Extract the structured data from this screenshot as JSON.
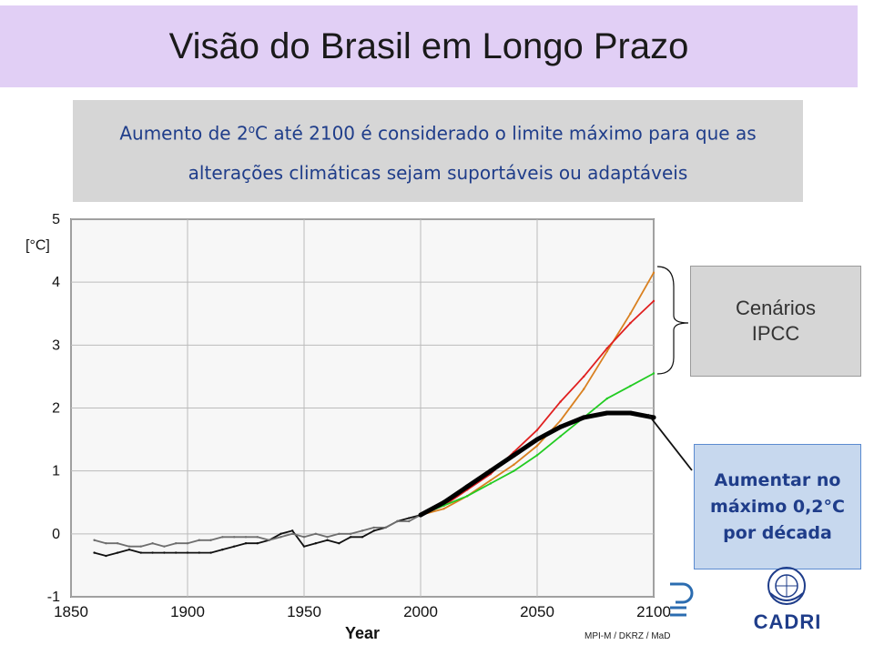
{
  "header": {
    "title": "Visão do Brasil em Longo Prazo"
  },
  "note": {
    "line1_pre": "Aumento de 2",
    "line1_sup": "o",
    "line1_post": "C até 2100 é considerado o limite máximo para que as",
    "line2": "alterações climáticas sejam suportáveis ou adaptáveis"
  },
  "scenarios_box": {
    "line1": "Cenários",
    "line2": "IPCC"
  },
  "limit_box": {
    "line1": "Aumentar no",
    "line2": "máximo 0,2°C",
    "line3": "por década"
  },
  "credit": "MPI-M / DKRZ / MaD",
  "logos": {
    "cadri": "CADRI",
    "cadri_icon": "un-emblem-icon",
    "partner_icon": "partner-logo-icon"
  },
  "chart_data": {
    "type": "line",
    "xlabel": "Year",
    "ylabel": "[°C]",
    "xlim": [
      1850,
      2100
    ],
    "ylim": [
      -1,
      5
    ],
    "x_ticks": [
      1850,
      1900,
      1950,
      2000,
      2050,
      2100
    ],
    "y_ticks": [
      -1,
      0,
      1,
      2,
      3,
      4,
      5
    ],
    "colors": {
      "obs_black": "#111111",
      "obs_gray": "#6e6e6e",
      "high": "#d98020",
      "mid": "#e02020",
      "low": "#22cc22",
      "target": "#000000"
    },
    "series": [
      {
        "key": "obs_black",
        "x": [
          1860,
          1865,
          1870,
          1875,
          1880,
          1885,
          1890,
          1895,
          1900,
          1905,
          1910,
          1915,
          1920,
          1925,
          1930,
          1935,
          1940,
          1945,
          1950,
          1955,
          1960,
          1965,
          1970,
          1975,
          1980,
          1985,
          1990,
          1995,
          2000
        ],
        "y": [
          -0.3,
          -0.35,
          -0.3,
          -0.25,
          -0.3,
          -0.3,
          -0.3,
          -0.3,
          -0.3,
          -0.3,
          -0.3,
          -0.25,
          -0.2,
          -0.15,
          -0.15,
          -0.1,
          0.0,
          0.05,
          -0.2,
          -0.15,
          -0.1,
          -0.15,
          -0.05,
          -0.05,
          0.05,
          0.1,
          0.2,
          0.25,
          0.3
        ]
      },
      {
        "key": "obs_gray",
        "x": [
          1860,
          1865,
          1870,
          1875,
          1880,
          1885,
          1890,
          1895,
          1900,
          1905,
          1910,
          1915,
          1920,
          1925,
          1930,
          1935,
          1940,
          1945,
          1950,
          1955,
          1960,
          1965,
          1970,
          1975,
          1980,
          1985,
          1990,
          1995,
          2000
        ],
        "y": [
          -0.1,
          -0.15,
          -0.15,
          -0.2,
          -0.2,
          -0.15,
          -0.2,
          -0.15,
          -0.15,
          -0.1,
          -0.1,
          -0.05,
          -0.05,
          -0.05,
          -0.05,
          -0.1,
          -0.05,
          0.0,
          -0.05,
          0.0,
          -0.05,
          0.0,
          0.0,
          0.05,
          0.1,
          0.1,
          0.2,
          0.2,
          0.3
        ]
      },
      {
        "key": "high",
        "x": [
          2000,
          2010,
          2020,
          2030,
          2040,
          2050,
          2060,
          2070,
          2080,
          2090,
          2100
        ],
        "y": [
          0.3,
          0.4,
          0.6,
          0.85,
          1.1,
          1.4,
          1.8,
          2.3,
          2.9,
          3.5,
          4.15
        ]
      },
      {
        "key": "mid",
        "x": [
          2000,
          2010,
          2020,
          2030,
          2040,
          2050,
          2060,
          2070,
          2080,
          2090,
          2100
        ],
        "y": [
          0.3,
          0.45,
          0.7,
          0.95,
          1.3,
          1.65,
          2.1,
          2.5,
          2.95,
          3.35,
          3.7
        ]
      },
      {
        "key": "low",
        "x": [
          2000,
          2010,
          2020,
          2030,
          2040,
          2050,
          2060,
          2070,
          2080,
          2090,
          2100
        ],
        "y": [
          0.3,
          0.45,
          0.6,
          0.8,
          1.0,
          1.25,
          1.55,
          1.85,
          2.15,
          2.35,
          2.55
        ]
      },
      {
        "key": "target",
        "x": [
          2000,
          2010,
          2020,
          2030,
          2040,
          2050,
          2060,
          2070,
          2080,
          2090,
          2100
        ],
        "y": [
          0.3,
          0.5,
          0.75,
          1.0,
          1.25,
          1.5,
          1.7,
          1.85,
          1.92,
          1.92,
          1.85
        ]
      }
    ]
  }
}
